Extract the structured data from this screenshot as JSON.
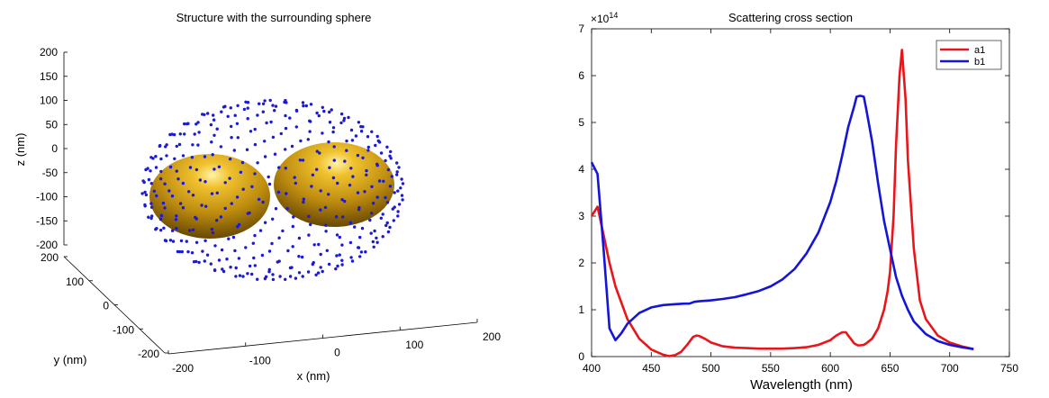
{
  "chart_data": [
    {
      "type": "scatter3d",
      "title": "Structure with the surrounding sphere",
      "xlabel": "x (nm)",
      "ylabel": "y (nm)",
      "zlabel": "z (nm)",
      "xlim": [
        -200,
        200
      ],
      "ylim": [
        -200,
        200
      ],
      "zlim": [
        -200,
        200
      ],
      "xticks": [
        "-200",
        "-100",
        "0",
        "100",
        "200"
      ],
      "yticks": [
        "-200",
        "-100",
        "0",
        "100",
        "200"
      ],
      "zticks": [
        "-200",
        "-150",
        "-100",
        "-50",
        "0",
        "50",
        "100",
        "150",
        "200"
      ],
      "objects": [
        {
          "shape": "sphere",
          "center": [
            -80,
            0,
            0
          ],
          "radius": 70,
          "color": "#c99a12"
        },
        {
          "shape": "sphere",
          "center": [
            80,
            0,
            0
          ],
          "radius": 70,
          "color": "#c99a12"
        }
      ],
      "surrounding_sphere": {
        "center": [
          0,
          0,
          0
        ],
        "radius": 160,
        "point_color": "#1a1ad6"
      },
      "grid": false
    },
    {
      "type": "line",
      "title": "Scattering cross section",
      "xlabel": "Wavelength (nm)",
      "ylabel": "",
      "exponent_label": "×10",
      "exponent": "14",
      "xlim": [
        400,
        750
      ],
      "ylim": [
        0,
        7
      ],
      "xticks": [
        "400",
        "450",
        "500",
        "550",
        "600",
        "650",
        "700",
        "750"
      ],
      "yticks": [
        "0",
        "1",
        "2",
        "3",
        "4",
        "5",
        "6",
        "7"
      ],
      "legend_position": "top-right",
      "grid": false,
      "series": [
        {
          "name": "a1",
          "color": "#e8161b",
          "x": [
            400,
            405,
            410,
            415,
            420,
            430,
            440,
            450,
            460,
            465,
            470,
            475,
            480,
            485,
            488,
            490,
            495,
            500,
            510,
            520,
            530,
            540,
            550,
            560,
            570,
            580,
            590,
            600,
            605,
            610,
            613,
            615,
            618,
            620,
            623,
            625,
            628,
            630,
            635,
            640,
            645,
            648,
            650,
            653,
            655,
            658,
            660,
            663,
            665,
            670,
            675,
            680,
            690,
            700,
            710,
            720
          ],
          "y": [
            3.0,
            3.2,
            2.6,
            2.0,
            1.5,
            0.8,
            0.38,
            0.15,
            0.04,
            0.01,
            0.03,
            0.1,
            0.25,
            0.42,
            0.45,
            0.44,
            0.38,
            0.3,
            0.22,
            0.19,
            0.18,
            0.17,
            0.17,
            0.17,
            0.18,
            0.2,
            0.25,
            0.35,
            0.45,
            0.52,
            0.52,
            0.45,
            0.35,
            0.28,
            0.24,
            0.24,
            0.25,
            0.28,
            0.38,
            0.6,
            1.0,
            1.4,
            1.8,
            3.0,
            4.5,
            6.0,
            6.55,
            5.5,
            4.2,
            2.3,
            1.2,
            0.8,
            0.45,
            0.3,
            0.22,
            0.16
          ]
        },
        {
          "name": "b1",
          "color": "#1515d9",
          "x": [
            400,
            405,
            410,
            415,
            420,
            425,
            430,
            440,
            450,
            460,
            470,
            478,
            482,
            486,
            490,
            500,
            510,
            520,
            530,
            540,
            550,
            560,
            570,
            580,
            590,
            600,
            605,
            610,
            615,
            620,
            622,
            625,
            628,
            630,
            635,
            640,
            645,
            650,
            655,
            660,
            665,
            670,
            680,
            690,
            700,
            710,
            720
          ],
          "y": [
            4.15,
            3.9,
            2.3,
            0.6,
            0.35,
            0.5,
            0.7,
            0.93,
            1.05,
            1.1,
            1.12,
            1.13,
            1.13,
            1.17,
            1.18,
            1.2,
            1.23,
            1.27,
            1.33,
            1.4,
            1.5,
            1.65,
            1.87,
            2.2,
            2.65,
            3.3,
            3.75,
            4.3,
            4.9,
            5.35,
            5.55,
            5.57,
            5.55,
            5.3,
            4.6,
            3.7,
            2.9,
            2.3,
            1.7,
            1.3,
            1.0,
            0.75,
            0.48,
            0.33,
            0.25,
            0.2,
            0.16
          ]
        }
      ]
    }
  ]
}
